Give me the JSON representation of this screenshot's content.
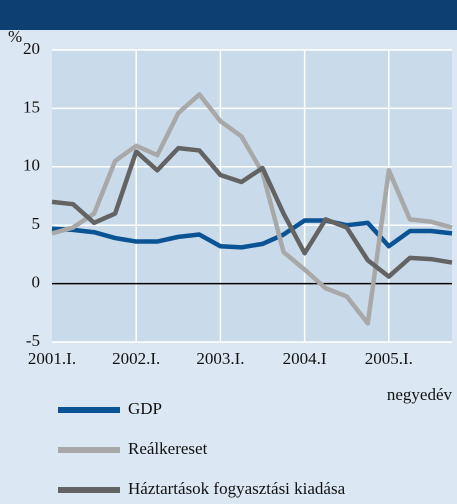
{
  "chart_data": {
    "type": "line",
    "y_unit": "%",
    "x_label": "negyedév",
    "categories": [
      "2001.I.",
      null,
      null,
      null,
      "2002.I.",
      null,
      null,
      null,
      "2003.I.",
      null,
      null,
      null,
      "2004.I",
      null,
      null,
      null,
      "2005.I.",
      null,
      null,
      null
    ],
    "series": [
      {
        "name": "GDP",
        "color": "#0b5394",
        "values": [
          4.7,
          4.6,
          4.4,
          3.9,
          3.6,
          3.6,
          4.0,
          4.2,
          3.2,
          3.1,
          3.4,
          4.2,
          5.4,
          5.4,
          5.0,
          5.2,
          3.2,
          4.5,
          4.5,
          4.3
        ]
      },
      {
        "name": "Reálkereset",
        "color": "#a8a8a8",
        "values": [
          4.3,
          4.8,
          6.0,
          10.5,
          11.8,
          11.0,
          14.6,
          16.2,
          13.9,
          12.6,
          9.5,
          2.7,
          1.2,
          -0.4,
          -1.1,
          -3.4,
          9.7,
          5.5,
          5.3,
          4.8
        ]
      },
      {
        "name": "Háztartások fogyasztási kiadása",
        "color": "#636363",
        "values": [
          7.0,
          6.8,
          5.2,
          6.0,
          11.3,
          9.7,
          11.6,
          11.4,
          9.3,
          8.7,
          9.9,
          6.0,
          2.6,
          5.5,
          4.8,
          2.0,
          0.6,
          2.2,
          2.1,
          1.8
        ]
      }
    ],
    "ylim": [
      -5,
      20
    ],
    "yticks": [
      -5,
      0,
      5,
      10,
      15,
      20
    ],
    "grid": true
  }
}
